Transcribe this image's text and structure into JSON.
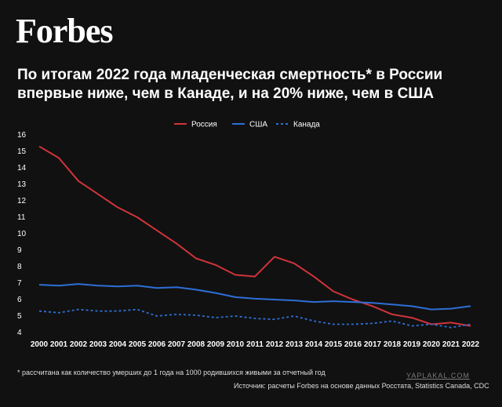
{
  "brand": {
    "logo_text": "Forbes"
  },
  "title_lines": [
    "По итогам 2022 года младенческая смертность* в России",
    "впервые ниже, чем в Канаде, и на 20% ниже, чем в США"
  ],
  "footnote": "* рассчитана как количество умерших до 1 года на 1000 родившихся живыми за отчетный год",
  "source": "Источник: расчеты Forbes на основе данных Росстата, Statistics Canada, CDC",
  "watermark": "YAPLAKAL.COM",
  "chart_data": {
    "type": "line",
    "title": "",
    "xlabel": "",
    "ylabel": "",
    "ylim": [
      4,
      16
    ],
    "yticks": [
      4,
      5,
      6,
      7,
      8,
      9,
      10,
      11,
      12,
      13,
      14,
      15,
      16
    ],
    "grid": false,
    "legend_position": "top-center",
    "x": [
      "2000",
      "2001",
      "2002",
      "2003",
      "2004",
      "2005",
      "2006",
      "2007",
      "2008",
      "2009",
      "2010",
      "2011",
      "2012",
      "2013",
      "2014",
      "2015",
      "2016",
      "2017",
      "2018",
      "2019",
      "2020",
      "2021",
      "2022"
    ],
    "series": [
      {
        "name": "Россия",
        "color": "#d0343a",
        "style": "solid",
        "values": [
          15.3,
          14.6,
          13.2,
          12.4,
          11.6,
          11.0,
          10.2,
          9.4,
          8.5,
          8.1,
          7.5,
          7.4,
          8.6,
          8.2,
          7.4,
          6.5,
          6.0,
          5.6,
          5.1,
          4.9,
          4.5,
          4.6,
          4.4
        ]
      },
      {
        "name": "США",
        "color": "#2d6fd6",
        "style": "solid",
        "values": [
          6.9,
          6.85,
          6.95,
          6.85,
          6.8,
          6.85,
          6.7,
          6.75,
          6.6,
          6.4,
          6.15,
          6.05,
          6.0,
          5.95,
          5.85,
          5.9,
          5.85,
          5.8,
          5.7,
          5.6,
          5.4,
          5.45,
          5.6
        ]
      },
      {
        "name": "Канада",
        "color": "#2d6fd6",
        "style": "dashed",
        "values": [
          5.3,
          5.2,
          5.4,
          5.3,
          5.3,
          5.4,
          5.0,
          5.1,
          5.05,
          4.9,
          5.0,
          4.85,
          4.8,
          5.0,
          4.7,
          4.5,
          4.5,
          4.55,
          4.7,
          4.4,
          4.5,
          4.3,
          4.5
        ]
      }
    ]
  }
}
